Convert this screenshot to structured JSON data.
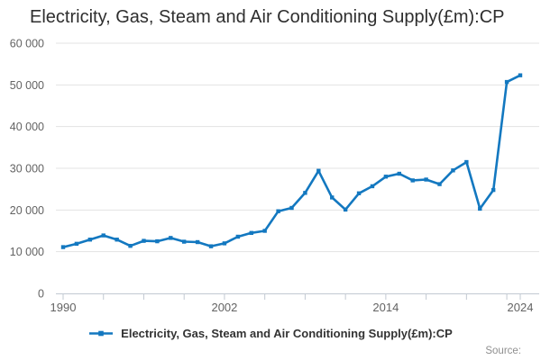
{
  "page": {
    "title": "Electricity, Gas, Steam and Air Conditioning Supply(£m):CP",
    "source_label": "Source:"
  },
  "legend": {
    "label": "Electricity, Gas, Steam and Air Conditioning Supply(£m):CP"
  },
  "colors": {
    "line": "#1378c0",
    "grid": "#e3e3e3",
    "axis": "#c2c9d2",
    "tick_text": "#636363",
    "title_text": "#2e2e2e",
    "legend_text": "#333333",
    "source_text": "#8f8f8f",
    "background": "#ffffff"
  },
  "chart_data": {
    "type": "line",
    "title": "Electricity, Gas, Steam and Air Conditioning Supply(£m):CP",
    "series_name": "Electricity, Gas, Steam and Air Conditioning Supply(£m):CP",
    "x": [
      1990,
      1991,
      1992,
      1993,
      1994,
      1995,
      1996,
      1997,
      1998,
      1999,
      2000,
      2001,
      2002,
      2003,
      2004,
      2005,
      2006,
      2007,
      2008,
      2009,
      2010,
      2011,
      2012,
      2013,
      2014,
      2015,
      2016,
      2017,
      2018,
      2019,
      2020,
      2021,
      2022,
      2023,
      2024
    ],
    "values": [
      11100,
      11900,
      12900,
      13900,
      12900,
      11400,
      12600,
      12500,
      13300,
      12400,
      12300,
      11300,
      12000,
      13600,
      14500,
      15000,
      19700,
      20500,
      24100,
      29400,
      23000,
      20100,
      24000,
      25700,
      28000,
      28700,
      27100,
      27300,
      26200,
      29500,
      31500,
      20300,
      24800,
      50700,
      52300
    ],
    "xlabel": "",
    "ylabel": "",
    "xlim": [
      1990,
      2024
    ],
    "ylim": [
      0,
      60000
    ],
    "y_ticks": [
      0,
      10000,
      20000,
      30000,
      40000,
      50000,
      60000
    ],
    "y_tick_labels": [
      "0",
      "10 000",
      "20 000",
      "30 000",
      "40 000",
      "50 000",
      "60 000"
    ],
    "x_ticks": [
      1990,
      1993,
      1996,
      1999,
      2002,
      2005,
      2008,
      2011,
      2014,
      2017,
      2020,
      2023,
      2024
    ],
    "x_labeled_ticks": [
      1990,
      2002,
      2014,
      2024
    ],
    "x_tick_labels": [
      "1990",
      "2002",
      "2014",
      "2024"
    ],
    "grid": "horizontal-only",
    "legend_position": "bottom-center",
    "marker": "square"
  }
}
